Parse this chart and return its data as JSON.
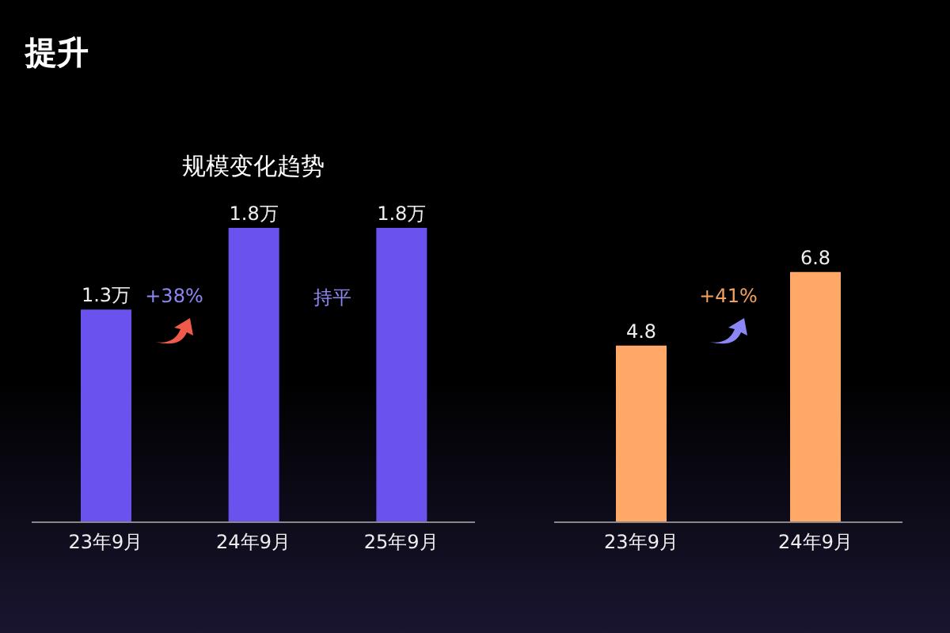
{
  "chart_data": [
    {
      "type": "bar",
      "title": "提升",
      "subtitle": "规模变化趋势",
      "categories": [
        "23年9月",
        "24年9月",
        "25年9月"
      ],
      "values": [
        1.3,
        1.8,
        1.8
      ],
      "value_labels": [
        "1.3万",
        "1.8万",
        "1.8万"
      ],
      "color": "#6a52ee",
      "tick_labels": "x",
      "annotations": [
        "+38%",
        "持平"
      ]
    },
    {
      "type": "bar",
      "categories": [
        "23年9月",
        "24年9月"
      ],
      "values": [
        4.8,
        6.8
      ],
      "data_labels": true,
      "color": "#ffa868",
      "tick_labels": "x",
      "annotations": [
        "+41%"
      ]
    }
  ]
}
